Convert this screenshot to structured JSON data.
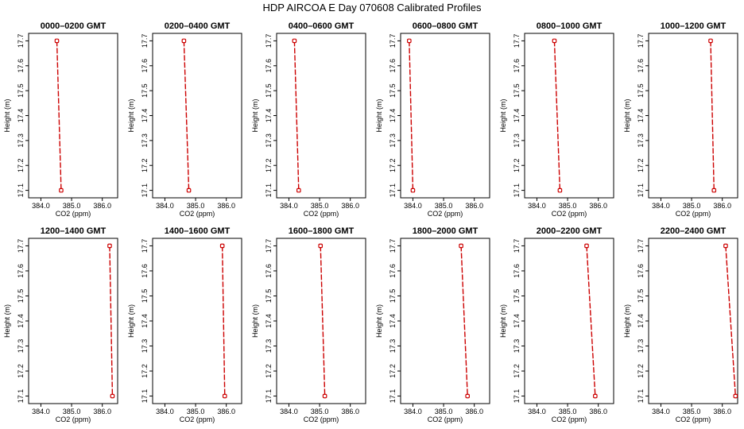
{
  "chart_data": {
    "type": "line",
    "title": "HDP  AIRCOA E  Day 070608  Calibrated Profiles",
    "xlabel": "CO2 (ppm)",
    "ylabel": "Height (m)",
    "xlim": [
      383.6,
      386.5
    ],
    "ylim": [
      17.07,
      17.73
    ],
    "x_ticks": [
      "384.0",
      "385.0",
      "386.0"
    ],
    "y_ticks": [
      "17.1",
      "17.2",
      "17.3",
      "17.4",
      "17.5",
      "17.6",
      "17.7"
    ],
    "grid": false,
    "line_color": "#cc0000",
    "marker_color": "#cc0000",
    "panels": [
      {
        "title": "0000–0200 GMT",
        "points": [
          {
            "co2": 384.52,
            "height": 17.7
          },
          {
            "co2": 384.66,
            "height": 17.1
          }
        ]
      },
      {
        "title": "0200–0400 GMT",
        "points": [
          {
            "co2": 384.62,
            "height": 17.7
          },
          {
            "co2": 384.78,
            "height": 17.1
          }
        ]
      },
      {
        "title": "0400–0600 GMT",
        "points": [
          {
            "co2": 384.18,
            "height": 17.7
          },
          {
            "co2": 384.32,
            "height": 17.1
          }
        ]
      },
      {
        "title": "0600–0800 GMT",
        "points": [
          {
            "co2": 383.88,
            "height": 17.7
          },
          {
            "co2": 384.0,
            "height": 17.1
          }
        ]
      },
      {
        "title": "0800–1000 GMT",
        "points": [
          {
            "co2": 384.57,
            "height": 17.7
          },
          {
            "co2": 384.75,
            "height": 17.1
          }
        ]
      },
      {
        "title": "1000–1200 GMT",
        "points": [
          {
            "co2": 385.62,
            "height": 17.7
          },
          {
            "co2": 385.73,
            "height": 17.1
          }
        ]
      },
      {
        "title": "1200–1400 GMT",
        "points": [
          {
            "co2": 386.24,
            "height": 17.7
          },
          {
            "co2": 386.33,
            "height": 17.1
          }
        ]
      },
      {
        "title": "1400–1600 GMT",
        "points": [
          {
            "co2": 385.87,
            "height": 17.7
          },
          {
            "co2": 385.95,
            "height": 17.1
          }
        ]
      },
      {
        "title": "1600–1800 GMT",
        "points": [
          {
            "co2": 385.03,
            "height": 17.7
          },
          {
            "co2": 385.17,
            "height": 17.1
          }
        ]
      },
      {
        "title": "1800–2000 GMT",
        "points": [
          {
            "co2": 385.57,
            "height": 17.7
          },
          {
            "co2": 385.78,
            "height": 17.1
          }
        ]
      },
      {
        "title": "2000–2200 GMT",
        "points": [
          {
            "co2": 385.62,
            "height": 17.7
          },
          {
            "co2": 385.9,
            "height": 17.1
          }
        ]
      },
      {
        "title": "2200–2400 GMT",
        "points": [
          {
            "co2": 386.11,
            "height": 17.7
          },
          {
            "co2": 386.43,
            "height": 17.1
          }
        ]
      }
    ]
  }
}
